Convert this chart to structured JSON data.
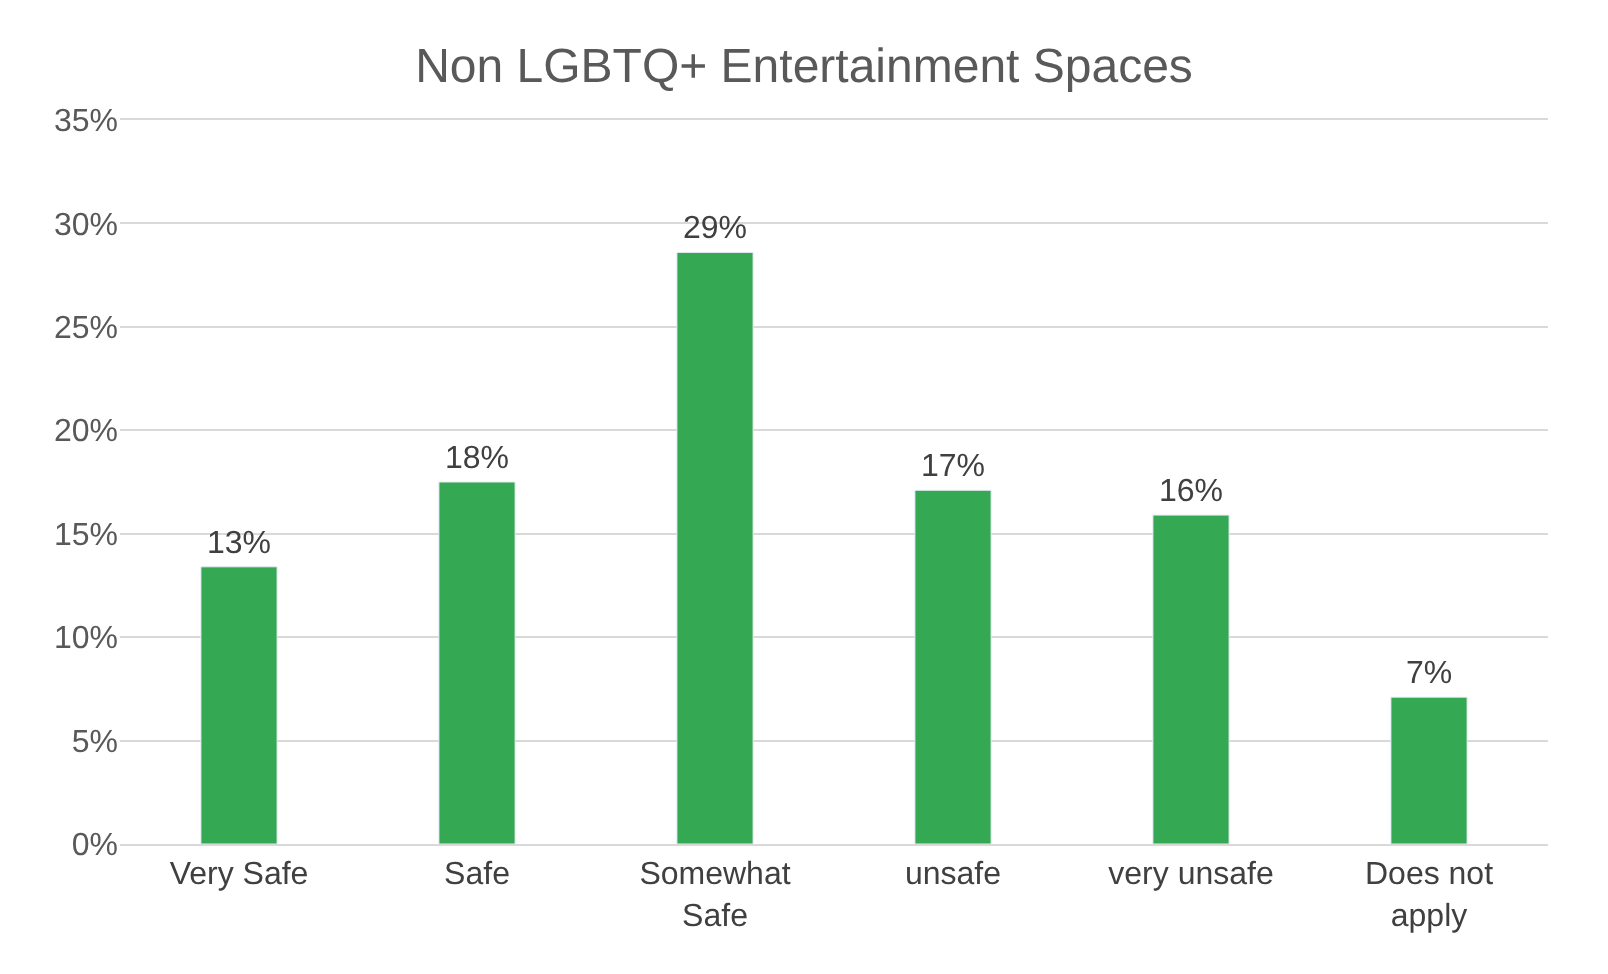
{
  "chart_data": {
    "type": "bar",
    "title": "Non LGBTQ+ Entertainment Spaces",
    "categories": [
      "Very Safe",
      "Safe",
      "Somewhat Safe",
      "unsafe",
      "very unsafe",
      "Does not apply"
    ],
    "values": [
      13.4,
      17.5,
      28.6,
      17.1,
      15.9,
      7.1
    ],
    "value_labels": [
      "13%",
      "18%",
      "29%",
      "17%",
      "16%",
      "7%"
    ],
    "color": "#34a853",
    "ylim": [
      0,
      35
    ],
    "yticks": [
      {
        "value": 0,
        "label": "0%"
      },
      {
        "value": 5,
        "label": "5%"
      },
      {
        "value": 10,
        "label": "10%"
      },
      {
        "value": 15,
        "label": "15%"
      },
      {
        "value": 20,
        "label": "20%"
      },
      {
        "value": 25,
        "label": "25%"
      },
      {
        "value": 30,
        "label": "30%"
      },
      {
        "value": 35,
        "label": "35%"
      }
    ],
    "grid": "y",
    "legend": false
  }
}
